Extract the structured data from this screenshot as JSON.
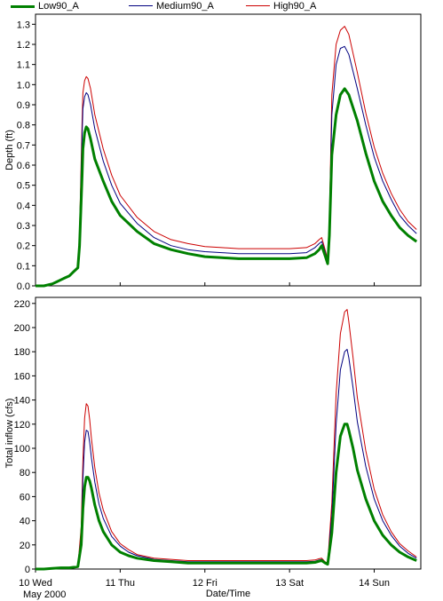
{
  "chart_data": [
    {
      "type": "line",
      "ylabel": "Depth (ft)",
      "ylim": [
        0,
        1.35
      ],
      "yticks": [
        "0.0",
        "0.1",
        "0.2",
        "0.3",
        "0.4",
        "0.5",
        "0.6",
        "0.7",
        "0.8",
        "0.9",
        "1.0",
        "1.1",
        "1.2",
        "1.3"
      ],
      "xlim": [
        0,
        4.55
      ],
      "grid": false,
      "legend": "top-left",
      "series": [
        {
          "name": "Low90_A",
          "color": "#008000",
          "x": [
            0.0,
            0.1,
            0.2,
            0.25,
            0.3,
            0.35,
            0.4,
            0.45,
            0.5,
            0.52,
            0.55,
            0.56,
            0.58,
            0.6,
            0.62,
            0.65,
            0.7,
            0.8,
            0.9,
            1.0,
            1.2,
            1.4,
            1.6,
            1.8,
            2.0,
            2.2,
            2.4,
            2.6,
            2.8,
            3.0,
            3.2,
            3.3,
            3.35,
            3.38,
            3.42,
            3.45,
            3.47,
            3.5,
            3.55,
            3.6,
            3.65,
            3.7,
            3.8,
            3.9,
            4.0,
            4.1,
            4.2,
            4.3,
            4.4,
            4.5
          ],
          "y": [
            0.0,
            0.0,
            0.01,
            0.02,
            0.03,
            0.04,
            0.05,
            0.07,
            0.09,
            0.2,
            0.55,
            0.68,
            0.76,
            0.79,
            0.78,
            0.73,
            0.63,
            0.52,
            0.42,
            0.35,
            0.27,
            0.21,
            0.18,
            0.16,
            0.145,
            0.14,
            0.135,
            0.135,
            0.135,
            0.135,
            0.14,
            0.16,
            0.18,
            0.2,
            0.15,
            0.11,
            0.25,
            0.65,
            0.85,
            0.95,
            0.98,
            0.95,
            0.82,
            0.66,
            0.52,
            0.42,
            0.35,
            0.29,
            0.25,
            0.22
          ]
        },
        {
          "name": "Medium90_A",
          "color": "#000080",
          "x": [
            0.0,
            0.1,
            0.2,
            0.25,
            0.3,
            0.35,
            0.4,
            0.45,
            0.5,
            0.52,
            0.55,
            0.56,
            0.58,
            0.6,
            0.62,
            0.65,
            0.7,
            0.8,
            0.9,
            1.0,
            1.2,
            1.4,
            1.6,
            1.8,
            2.0,
            2.2,
            2.4,
            2.6,
            2.8,
            3.0,
            3.2,
            3.3,
            3.35,
            3.38,
            3.42,
            3.45,
            3.47,
            3.5,
            3.55,
            3.6,
            3.65,
            3.7,
            3.8,
            3.9,
            4.0,
            4.1,
            4.2,
            4.3,
            4.4,
            4.5
          ],
          "y": [
            0.0,
            0.0,
            0.01,
            0.02,
            0.03,
            0.04,
            0.05,
            0.07,
            0.09,
            0.25,
            0.75,
            0.88,
            0.94,
            0.96,
            0.95,
            0.9,
            0.78,
            0.62,
            0.5,
            0.41,
            0.31,
            0.24,
            0.2,
            0.18,
            0.17,
            0.165,
            0.16,
            0.16,
            0.16,
            0.16,
            0.165,
            0.19,
            0.21,
            0.22,
            0.17,
            0.12,
            0.3,
            0.85,
            1.1,
            1.18,
            1.19,
            1.15,
            0.98,
            0.8,
            0.64,
            0.52,
            0.43,
            0.35,
            0.3,
            0.26
          ]
        },
        {
          "name": "High90_A",
          "color": "#cc0000",
          "x": [
            0.0,
            0.1,
            0.2,
            0.25,
            0.3,
            0.35,
            0.4,
            0.45,
            0.5,
            0.52,
            0.55,
            0.56,
            0.58,
            0.6,
            0.62,
            0.65,
            0.7,
            0.8,
            0.9,
            1.0,
            1.2,
            1.4,
            1.6,
            1.8,
            2.0,
            2.2,
            2.4,
            2.6,
            2.8,
            3.0,
            3.2,
            3.3,
            3.35,
            3.38,
            3.42,
            3.45,
            3.47,
            3.5,
            3.55,
            3.6,
            3.65,
            3.7,
            3.8,
            3.9,
            4.0,
            4.1,
            4.2,
            4.3,
            4.4,
            4.5
          ],
          "y": [
            0.0,
            0.0,
            0.01,
            0.02,
            0.03,
            0.04,
            0.05,
            0.07,
            0.09,
            0.27,
            0.82,
            0.96,
            1.02,
            1.04,
            1.03,
            0.98,
            0.85,
            0.68,
            0.55,
            0.45,
            0.34,
            0.27,
            0.23,
            0.21,
            0.195,
            0.19,
            0.185,
            0.185,
            0.185,
            0.185,
            0.19,
            0.21,
            0.23,
            0.24,
            0.18,
            0.13,
            0.32,
            0.95,
            1.2,
            1.27,
            1.29,
            1.25,
            1.06,
            0.86,
            0.69,
            0.56,
            0.46,
            0.38,
            0.32,
            0.28
          ]
        }
      ]
    },
    {
      "type": "line",
      "ylabel": "Total inflow (cfs)",
      "xlabel": "Date/Time",
      "ylim": [
        0,
        225
      ],
      "yticks": [
        "0",
        "20",
        "40",
        "60",
        "80",
        "100",
        "120",
        "140",
        "160",
        "180",
        "200",
        "220"
      ],
      "xlim": [
        0,
        4.55
      ],
      "xticks": [
        {
          "x": 0,
          "label": "10 Wed",
          "sub": "May 2000"
        },
        {
          "x": 1,
          "label": "11 Thu"
        },
        {
          "x": 2,
          "label": "12 Fri"
        },
        {
          "x": 3,
          "label": "13 Sat"
        },
        {
          "x": 4,
          "label": "14 Sun"
        }
      ],
      "grid": false,
      "series": [
        {
          "name": "Low90_A",
          "color": "#008000",
          "x": [
            0.0,
            0.1,
            0.2,
            0.3,
            0.4,
            0.5,
            0.54,
            0.56,
            0.58,
            0.6,
            0.62,
            0.64,
            0.66,
            0.7,
            0.75,
            0.8,
            0.9,
            1.0,
            1.1,
            1.2,
            1.4,
            1.6,
            1.8,
            2.0,
            2.2,
            2.4,
            2.6,
            2.8,
            3.0,
            3.2,
            3.3,
            3.35,
            3.38,
            3.42,
            3.45,
            3.5,
            3.55,
            3.6,
            3.65,
            3.68,
            3.7,
            3.75,
            3.8,
            3.9,
            4.0,
            4.1,
            4.2,
            4.3,
            4.4,
            4.5
          ],
          "y": [
            0.0,
            0.0,
            0.5,
            1.0,
            1.0,
            2.0,
            20.0,
            50.0,
            68.0,
            76.0,
            76.0,
            73.0,
            67.0,
            53.0,
            40.0,
            31.0,
            20.0,
            14.0,
            11.0,
            9.0,
            7.0,
            6.0,
            5.0,
            5.0,
            5.0,
            5.0,
            5.0,
            5.0,
            5.0,
            5.0,
            5.5,
            6.5,
            7.0,
            5.0,
            4.0,
            30.0,
            80.0,
            110.0,
            120.0,
            120.0,
            115.0,
            100.0,
            82.0,
            58.0,
            40.0,
            28.0,
            20.0,
            14.0,
            10.0,
            7.0
          ]
        },
        {
          "name": "Medium90_A",
          "color": "#000080",
          "x": [
            0.0,
            0.1,
            0.2,
            0.3,
            0.4,
            0.5,
            0.54,
            0.56,
            0.58,
            0.6,
            0.62,
            0.64,
            0.66,
            0.7,
            0.75,
            0.8,
            0.9,
            1.0,
            1.1,
            1.2,
            1.4,
            1.6,
            1.8,
            2.0,
            2.2,
            2.4,
            2.6,
            2.8,
            3.0,
            3.2,
            3.3,
            3.35,
            3.38,
            3.42,
            3.45,
            3.5,
            3.55,
            3.6,
            3.65,
            3.68,
            3.7,
            3.75,
            3.8,
            3.9,
            4.0,
            4.1,
            4.2,
            4.3,
            4.4,
            4.5
          ],
          "y": [
            0.0,
            0.0,
            0.5,
            1.0,
            1.0,
            2.0,
            28.0,
            75.0,
            105.0,
            115.0,
            114.0,
            105.0,
            92.0,
            72.0,
            54.0,
            42.0,
            27.0,
            19.0,
            14.0,
            11.0,
            8.0,
            7.0,
            6.0,
            6.0,
            6.0,
            6.0,
            6.0,
            6.0,
            6.0,
            6.0,
            6.5,
            7.5,
            8.0,
            5.5,
            4.5,
            45.0,
            120.0,
            165.0,
            180.0,
            182.0,
            175.0,
            150.0,
            122.0,
            85.0,
            58.0,
            40.0,
            28.0,
            19.0,
            13.0,
            9.0
          ]
        },
        {
          "name": "High90_A",
          "color": "#cc0000",
          "x": [
            0.0,
            0.1,
            0.2,
            0.3,
            0.4,
            0.5,
            0.54,
            0.56,
            0.58,
            0.6,
            0.62,
            0.64,
            0.66,
            0.7,
            0.75,
            0.8,
            0.9,
            1.0,
            1.1,
            1.2,
            1.4,
            1.6,
            1.8,
            2.0,
            2.2,
            2.4,
            2.6,
            2.8,
            3.0,
            3.2,
            3.3,
            3.35,
            3.38,
            3.42,
            3.45,
            3.5,
            3.55,
            3.6,
            3.65,
            3.68,
            3.7,
            3.75,
            3.8,
            3.9,
            4.0,
            4.1,
            4.2,
            4.3,
            4.4,
            4.5
          ],
          "y": [
            0.0,
            0.0,
            0.5,
            1.0,
            1.0,
            2.0,
            35.0,
            90.0,
            125.0,
            137.0,
            135.0,
            124.0,
            108.0,
            84.0,
            63.0,
            49.0,
            31.0,
            21.0,
            16.0,
            12.0,
            9.0,
            8.0,
            7.0,
            7.0,
            7.0,
            7.0,
            7.0,
            7.0,
            7.0,
            7.0,
            7.5,
            8.5,
            9.0,
            6.0,
            5.0,
            55.0,
            145.0,
            195.0,
            213.0,
            215.0,
            205.0,
            175.0,
            142.0,
            98.0,
            66.0,
            45.0,
            31.0,
            21.0,
            15.0,
            10.0
          ]
        }
      ]
    }
  ]
}
